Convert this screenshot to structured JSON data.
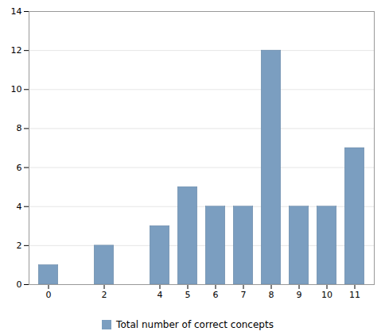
{
  "chart_data": {
    "type": "bar",
    "x": [
      0,
      2,
      4,
      5,
      6,
      7,
      8,
      9,
      10,
      11
    ],
    "series": [
      {
        "name": "Total number of correct concepts",
        "color": "#7B9EC0",
        "values": [
          1,
          2,
          3,
          5,
          4,
          4,
          12,
          4,
          4,
          7
        ]
      }
    ],
    "xlim": [
      -0.7,
      11.7
    ],
    "xticks": [
      0,
      2,
      4,
      5,
      6,
      7,
      8,
      9,
      10,
      11
    ],
    "ylim": [
      0,
      14
    ],
    "yticks": [
      0,
      2,
      4,
      6,
      8,
      10,
      12,
      14
    ],
    "grid": true,
    "legend": "bottom"
  }
}
